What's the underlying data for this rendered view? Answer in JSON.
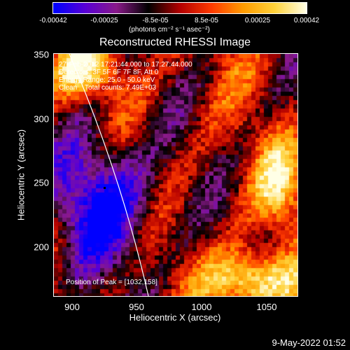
{
  "colorbar": {
    "ticks": [
      "-0.00042",
      "-0.00025",
      "-8.5e-05",
      "8.5e-05",
      "0.00025",
      "0.00042"
    ],
    "units": "(photons cm⁻² s⁻¹ asec⁻²)",
    "colors": [
      "#0000ff",
      "#5a00d6",
      "#8a1a8a",
      "#000000",
      "#b30000",
      "#ff3b00",
      "#ff9c00",
      "#ffd23a",
      "#ffffe6"
    ]
  },
  "title": "Reconstructed RHESSI Image",
  "overlay": {
    "line1": "27-Feb-2012 17:21:44.000 to 17:27:44.000",
    "line2": "Detectors: 3F 5F 6F 7F 8F, Att 0",
    "line3": "Energy Range: 25.0 - 50.0 keV",
    "line4": "Clean    Total counts: 7.49E+03",
    "peak": "Position of Peak = [1032,158]"
  },
  "axes": {
    "xlabel": "Heliocentric X (arcsec)",
    "ylabel": "Heliocentric Y (arcsec)",
    "xticks": [
      "900",
      "950",
      "1000",
      "1050"
    ],
    "yticks": [
      "350",
      "300",
      "250",
      "200"
    ],
    "xrange": [
      884,
      1073
    ],
    "yrange": [
      156,
      352
    ]
  },
  "footer_date": "9-May-2022 01:52"
}
